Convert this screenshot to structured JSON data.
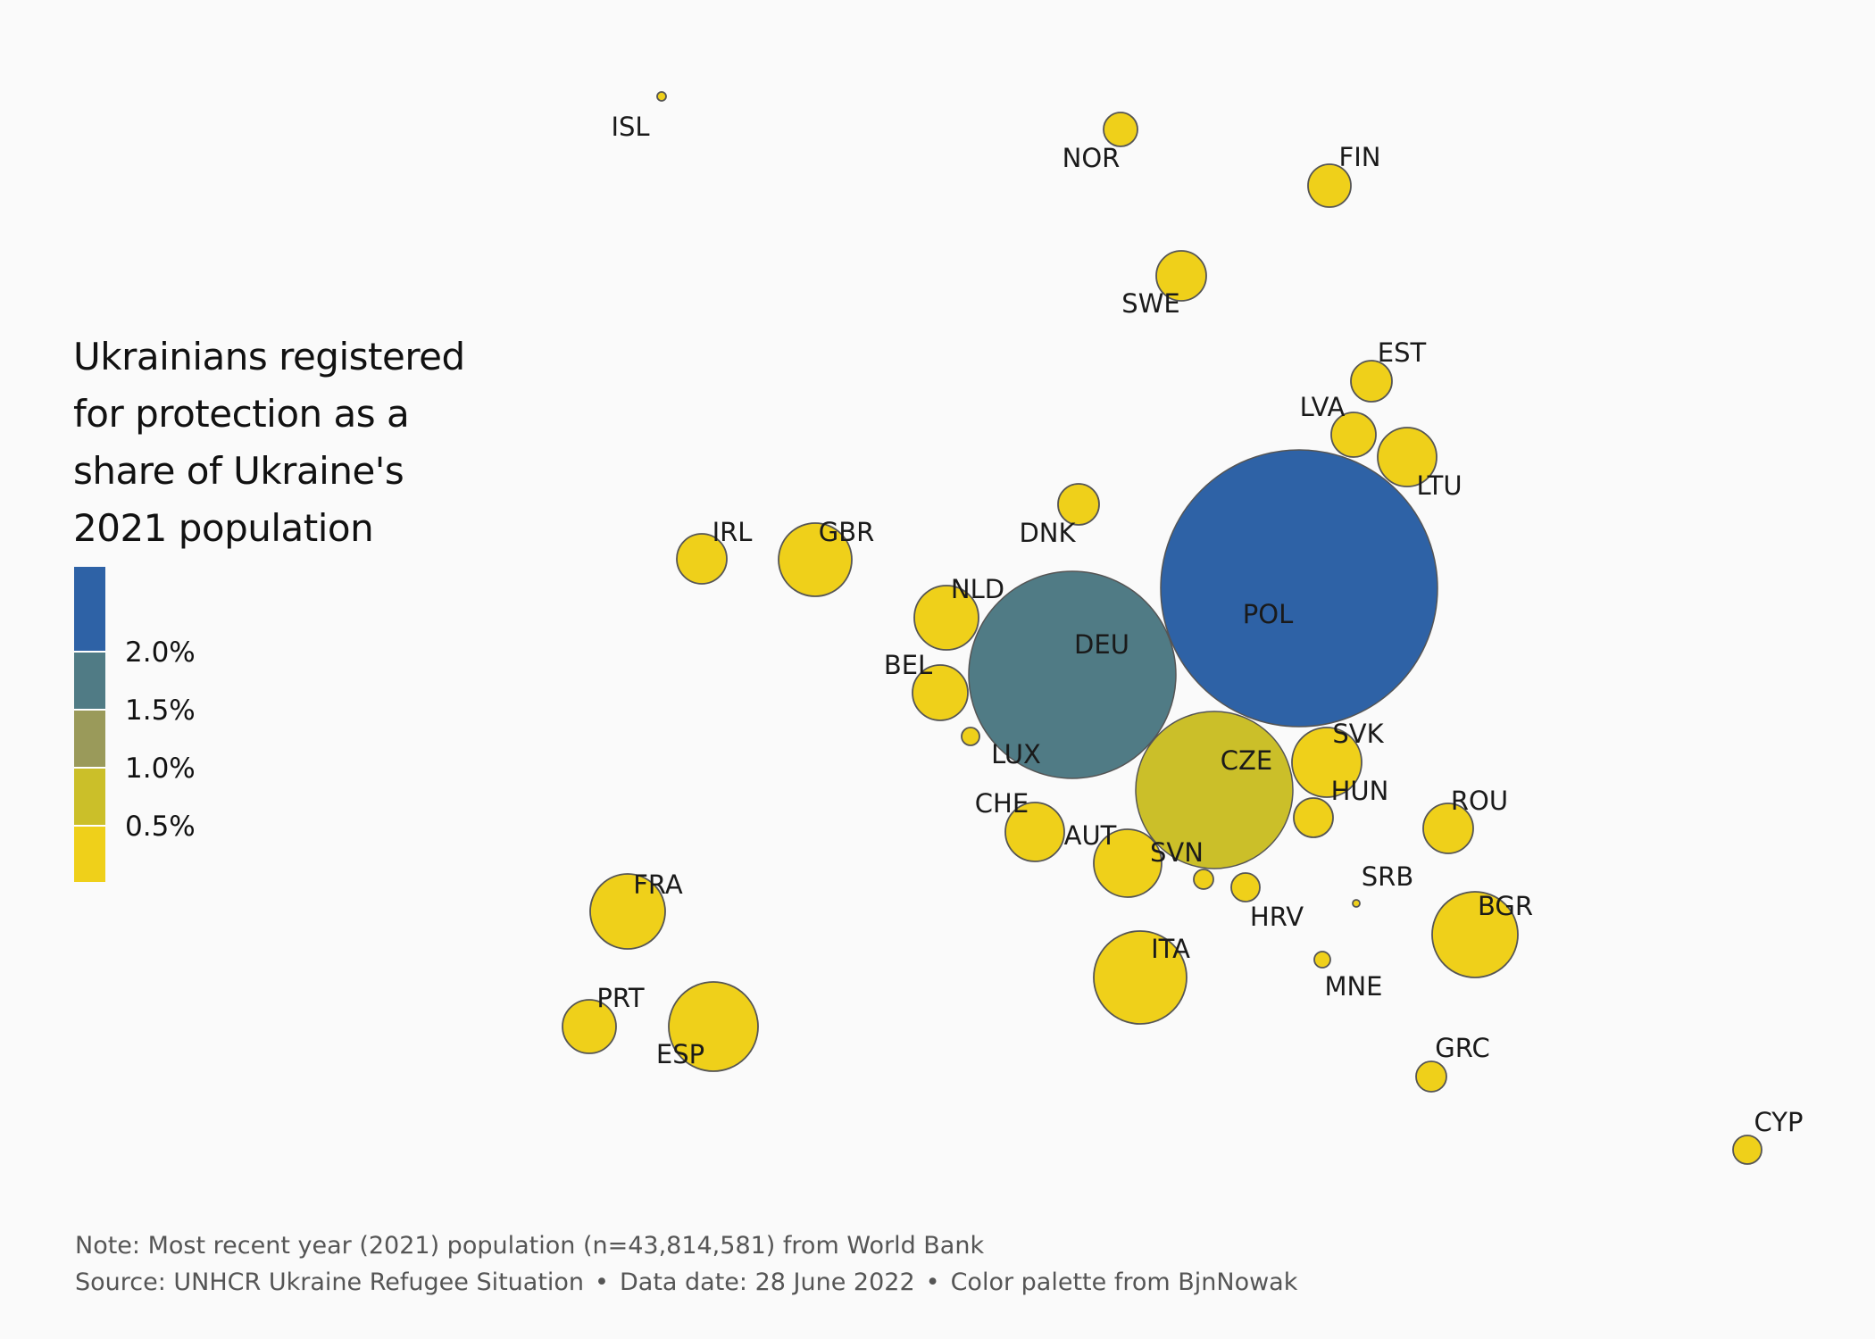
{
  "chart_data": {
    "type": "bubble-map",
    "legend": {
      "title_lines": [
        "Ukrainians registered",
        "for protection as a",
        "share of Ukraine's",
        "2021 population"
      ],
      "bins": [
        {
          "color": "#2e62a6"
        },
        {
          "color": "#507b85"
        },
        {
          "color": "#9a9a5a"
        },
        {
          "color": "#cbbf29"
        },
        {
          "color": "#efd01a"
        }
      ],
      "tick_labels": [
        "2.0%",
        "1.5%",
        "1.0%",
        "0.5%"
      ]
    },
    "points": [
      {
        "code": "ISL",
        "color": "#efd01a"
      },
      {
        "code": "NOR",
        "color": "#efd01a"
      },
      {
        "code": "FIN",
        "color": "#efd01a"
      },
      {
        "code": "SWE",
        "color": "#efd01a"
      },
      {
        "code": "EST",
        "color": "#efd01a"
      },
      {
        "code": "LVA",
        "color": "#efd01a"
      },
      {
        "code": "LTU",
        "color": "#efd01a"
      },
      {
        "code": "DNK",
        "color": "#efd01a"
      },
      {
        "code": "IRL",
        "color": "#efd01a"
      },
      {
        "code": "GBR",
        "color": "#efd01a"
      },
      {
        "code": "NLD",
        "color": "#efd01a"
      },
      {
        "code": "BEL",
        "color": "#efd01a"
      },
      {
        "code": "LUX",
        "color": "#efd01a"
      },
      {
        "code": "DEU",
        "color": "#507b85"
      },
      {
        "code": "POL",
        "color": "#2e62a6"
      },
      {
        "code": "CZE",
        "color": "#cbbf29"
      },
      {
        "code": "SVK",
        "color": "#efd01a"
      },
      {
        "code": "HUN",
        "color": "#efd01a"
      },
      {
        "code": "ROU",
        "color": "#efd01a"
      },
      {
        "code": "CHE",
        "color": "#efd01a"
      },
      {
        "code": "AUT",
        "color": "#efd01a"
      },
      {
        "code": "SVN",
        "color": "#efd01a"
      },
      {
        "code": "HRV",
        "color": "#efd01a"
      },
      {
        "code": "SRB",
        "color": "#efd01a"
      },
      {
        "code": "BGR",
        "color": "#efd01a"
      },
      {
        "code": "ITA",
        "color": "#efd01a"
      },
      {
        "code": "MNE",
        "color": "#efd01a"
      },
      {
        "code": "GRC",
        "color": "#efd01a"
      },
      {
        "code": "FRA",
        "color": "#efd01a"
      },
      {
        "code": "PRT",
        "color": "#efd01a"
      },
      {
        "code": "ESP",
        "color": "#efd01a"
      },
      {
        "code": "CYP",
        "color": "#efd01a"
      }
    ]
  },
  "footer": {
    "note": "Note: Most recent year (2021) population (n=43,814,581) from World Bank",
    "source_parts": [
      "Source: UNHCR Ukraine Refugee Situation",
      "Data date: 28 June 2022",
      "Color palette from BjnNowak"
    ],
    "separator": "•"
  }
}
